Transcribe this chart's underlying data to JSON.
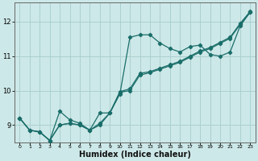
{
  "title": "",
  "xlabel": "Humidex (Indice chaleur)",
  "ylabel": "",
  "bg_color": "#cde8e8",
  "grid_color": "#aad0d0",
  "line_color": "#1a6e6a",
  "xlim": [
    -0.5,
    23.5
  ],
  "ylim": [
    8.5,
    12.55
  ],
  "yticks": [
    9,
    10,
    11,
    12
  ],
  "xticks": [
    0,
    1,
    2,
    3,
    4,
    5,
    6,
    7,
    8,
    9,
    10,
    11,
    12,
    13,
    14,
    15,
    16,
    17,
    18,
    19,
    20,
    21,
    22,
    23
  ],
  "series1_x": [
    0,
    1,
    2,
    3,
    4,
    5,
    6,
    7,
    8,
    9,
    10,
    11,
    12,
    13,
    14,
    15,
    16,
    17,
    18,
    19,
    20,
    21,
    22,
    23
  ],
  "series1_y": [
    9.2,
    8.85,
    8.8,
    8.55,
    9.4,
    9.15,
    9.05,
    8.85,
    9.35,
    9.35,
    9.9,
    11.55,
    11.62,
    11.62,
    11.38,
    11.22,
    11.12,
    11.28,
    11.32,
    11.05,
    11.0,
    11.12,
    11.88,
    12.28
  ],
  "series2_x": [
    0,
    1,
    2,
    3,
    4,
    5,
    6,
    7,
    8,
    9,
    10,
    11,
    12,
    13,
    14,
    15,
    16,
    17,
    18,
    19,
    20,
    21,
    22,
    23
  ],
  "series2_y": [
    9.2,
    8.85,
    8.8,
    8.55,
    9.0,
    9.05,
    9.0,
    8.85,
    9.05,
    9.35,
    9.97,
    10.05,
    10.5,
    10.55,
    10.65,
    10.75,
    10.85,
    11.0,
    11.15,
    11.25,
    11.4,
    11.55,
    11.95,
    12.3
  ],
  "series3_x": [
    0,
    1,
    2,
    3,
    4,
    5,
    6,
    7,
    8,
    9,
    10,
    11,
    12,
    13,
    14,
    15,
    16,
    17,
    18,
    19,
    20,
    21,
    22,
    23
  ],
  "series3_y": [
    9.2,
    8.85,
    8.8,
    8.55,
    9.0,
    9.05,
    9.0,
    8.85,
    9.0,
    9.35,
    9.95,
    10.0,
    10.45,
    10.52,
    10.62,
    10.72,
    10.82,
    10.97,
    11.12,
    11.22,
    11.37,
    11.52,
    11.92,
    12.27
  ],
  "marker": "D",
  "marker_size": 2.2,
  "linewidth": 0.9,
  "xlabel_fontsize": 7,
  "ytick_fontsize": 6,
  "xtick_fontsize": 4.5
}
